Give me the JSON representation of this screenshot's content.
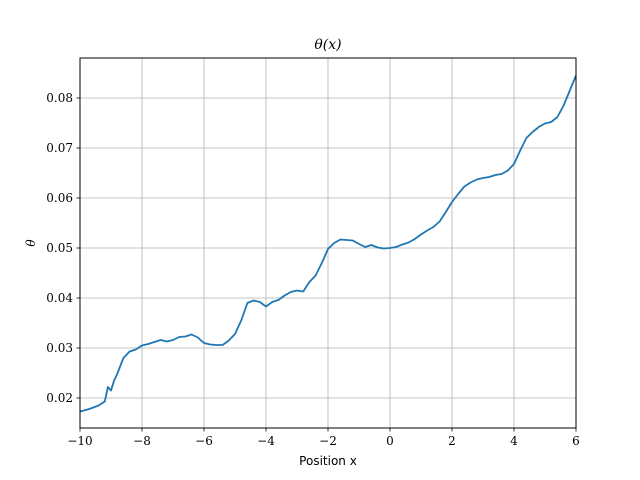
{
  "chart_data": {
    "type": "line",
    "title": "θ(x)",
    "xlabel": "Position x",
    "ylabel": "θ",
    "xlim": [
      -10,
      6
    ],
    "ylim": [
      0.014,
      0.088
    ],
    "grid": true,
    "x_ticks": [
      -10,
      -8,
      -6,
      -4,
      -2,
      0,
      2,
      4,
      6
    ],
    "x_tick_labels": [
      "−10",
      "−8",
      "−6",
      "−4",
      "−2",
      "0",
      "2",
      "4",
      "6"
    ],
    "y_ticks": [
      0.02,
      0.03,
      0.04,
      0.05,
      0.06,
      0.07,
      0.08
    ],
    "y_tick_labels": [
      "0.02",
      "0.03",
      "0.04",
      "0.05",
      "0.06",
      "0.07",
      "0.08"
    ],
    "series": [
      {
        "color": "#1f77b4",
        "x": [
          -10,
          -9.7,
          -9.4,
          -9.2,
          -9.1,
          -9.0,
          -8.9,
          -8.8,
          -8.6,
          -8.4,
          -8.2,
          -8.0,
          -7.8,
          -7.6,
          -7.4,
          -7.2,
          -7.0,
          -6.8,
          -6.6,
          -6.4,
          -6.2,
          -6.0,
          -5.8,
          -5.6,
          -5.4,
          -5.2,
          -5.0,
          -4.8,
          -4.6,
          -4.4,
          -4.2,
          -4.0,
          -3.8,
          -3.6,
          -3.4,
          -3.2,
          -3.0,
          -2.8,
          -2.6,
          -2.4,
          -2.2,
          -2.0,
          -1.8,
          -1.6,
          -1.4,
          -1.2,
          -1.0,
          -0.8,
          -0.6,
          -0.4,
          -0.2,
          0.0,
          0.2,
          0.4,
          0.6,
          0.8,
          1.0,
          1.2,
          1.4,
          1.6,
          1.8,
          2.0,
          2.2,
          2.4,
          2.6,
          2.8,
          3.0,
          3.2,
          3.4,
          3.6,
          3.8,
          4.0,
          4.2,
          4.4,
          4.6,
          4.8,
          5.0,
          5.2,
          5.4,
          5.6,
          5.8,
          6.0
        ],
        "y": [
          0.0173,
          0.0178,
          0.0185,
          0.0193,
          0.0222,
          0.0215,
          0.0235,
          0.0248,
          0.028,
          0.0293,
          0.0297,
          0.0305,
          0.0308,
          0.0312,
          0.0316,
          0.0313,
          0.0316,
          0.0322,
          0.0323,
          0.0327,
          0.0321,
          0.031,
          0.0307,
          0.0306,
          0.0306,
          0.0315,
          0.0328,
          0.0355,
          0.039,
          0.0395,
          0.0392,
          0.0383,
          0.0392,
          0.0396,
          0.0405,
          0.0412,
          0.0415,
          0.0413,
          0.0432,
          0.0445,
          0.047,
          0.0498,
          0.051,
          0.0517,
          0.0516,
          0.0515,
          0.0508,
          0.0502,
          0.0506,
          0.0501,
          0.0499,
          0.05,
          0.0502,
          0.0507,
          0.0511,
          0.0518,
          0.0527,
          0.0535,
          0.0542,
          0.0553,
          0.0572,
          0.0592,
          0.0608,
          0.0623,
          0.0631,
          0.0637,
          0.064,
          0.0642,
          0.0646,
          0.0648,
          0.0655,
          0.0668,
          0.0695,
          0.072,
          0.0732,
          0.0742,
          0.0749,
          0.0752,
          0.0762,
          0.0785,
          0.0815,
          0.0845
        ]
      }
    ]
  }
}
